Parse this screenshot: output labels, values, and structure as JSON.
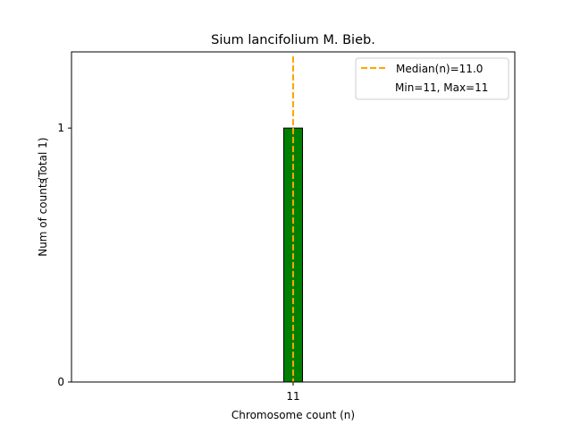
{
  "chart_data": {
    "type": "bar",
    "title": "Sium lancifolium M. Bieb.",
    "xlabel": "Chromosome count (n)",
    "ylabel": "Num of counts",
    "ylabel_total": "(Total 1)",
    "categories": [
      "11"
    ],
    "x": [
      11
    ],
    "values": [
      1
    ],
    "bar_width": 1,
    "bar_color": "#008000",
    "xlim": [
      -0.8,
      22.8
    ],
    "ylim": [
      0,
      1.3
    ],
    "xticks": [
      {
        "value": 11,
        "label": "11"
      }
    ],
    "yticks": [
      {
        "value": 0,
        "label": "0"
      },
      {
        "value": 1,
        "label": "1"
      }
    ],
    "median": {
      "value": 11.0,
      "color": "#FFA500",
      "label": "Median(n)=11.0"
    },
    "legend": {
      "position": "top-right",
      "entries": [
        "Median(n)=11.0",
        "Min=11, Max=11"
      ]
    },
    "grid": false
  }
}
